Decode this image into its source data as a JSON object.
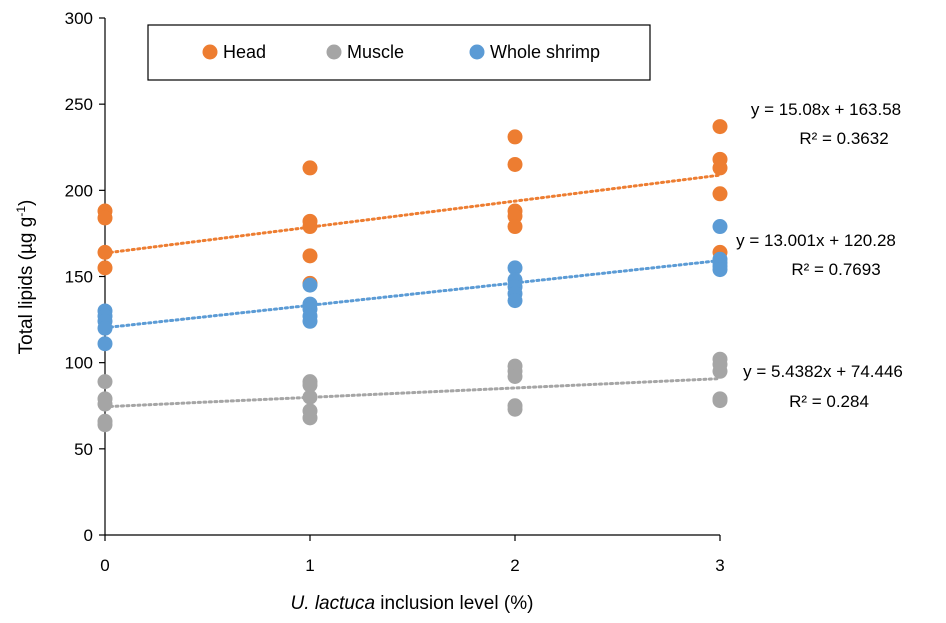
{
  "chart_data": {
    "type": "scatter",
    "xlabel_italic": "U. lactuca",
    "xlabel_rest": " inclusion level (%)",
    "ylabel_main": "Total lipids (µg g",
    "ylabel_sup": "-1",
    "ylabel_close": ")",
    "xlim": [
      0,
      3
    ],
    "ylim": [
      0,
      300
    ],
    "x_ticks": [
      "0",
      "1",
      "2",
      "3"
    ],
    "y_ticks": [
      "0",
      "50",
      "100",
      "150",
      "200",
      "250",
      "300"
    ],
    "legend_position": "top",
    "series": [
      {
        "name": "Head",
        "color": "#ED7D31",
        "points": [
          {
            "x": 0,
            "y": 188
          },
          {
            "x": 0,
            "y": 184
          },
          {
            "x": 0,
            "y": 164
          },
          {
            "x": 0,
            "y": 155
          },
          {
            "x": 1,
            "y": 213
          },
          {
            "x": 1,
            "y": 182
          },
          {
            "x": 1,
            "y": 179
          },
          {
            "x": 1,
            "y": 162
          },
          {
            "x": 1,
            "y": 146
          },
          {
            "x": 2,
            "y": 231
          },
          {
            "x": 2,
            "y": 215
          },
          {
            "x": 2,
            "y": 188
          },
          {
            "x": 2,
            "y": 185
          },
          {
            "x": 2,
            "y": 179
          },
          {
            "x": 3,
            "y": 237
          },
          {
            "x": 3,
            "y": 218
          },
          {
            "x": 3,
            "y": 213
          },
          {
            "x": 3,
            "y": 198
          },
          {
            "x": 3,
            "y": 164
          }
        ],
        "trend": {
          "slope": 15.08,
          "intercept": 163.58
        },
        "equation": "y = 15.08x + 163.58",
        "r2": "R² = 0.3632"
      },
      {
        "name": "Muscle",
        "color": "#A5A5A5",
        "points": [
          {
            "x": 0,
            "y": 89
          },
          {
            "x": 0,
            "y": 79
          },
          {
            "x": 0,
            "y": 76
          },
          {
            "x": 0,
            "y": 66
          },
          {
            "x": 0,
            "y": 64
          },
          {
            "x": 1,
            "y": 89
          },
          {
            "x": 1,
            "y": 87
          },
          {
            "x": 1,
            "y": 80
          },
          {
            "x": 1,
            "y": 72
          },
          {
            "x": 1,
            "y": 68
          },
          {
            "x": 2,
            "y": 98
          },
          {
            "x": 2,
            "y": 95
          },
          {
            "x": 2,
            "y": 92
          },
          {
            "x": 2,
            "y": 75
          },
          {
            "x": 2,
            "y": 73
          },
          {
            "x": 3,
            "y": 102
          },
          {
            "x": 3,
            "y": 99
          },
          {
            "x": 3,
            "y": 95
          },
          {
            "x": 3,
            "y": 79
          },
          {
            "x": 3,
            "y": 78
          }
        ],
        "trend": {
          "slope": 5.4382,
          "intercept": 74.446
        },
        "equation": "y = 5.4382x + 74.446",
        "r2": "R² = 0.284"
      },
      {
        "name": "Whole shrimp",
        "color": "#5B9BD5",
        "points": [
          {
            "x": 0,
            "y": 130
          },
          {
            "x": 0,
            "y": 127
          },
          {
            "x": 0,
            "y": 124
          },
          {
            "x": 0,
            "y": 120
          },
          {
            "x": 0,
            "y": 111
          },
          {
            "x": 1,
            "y": 145
          },
          {
            "x": 1,
            "y": 134
          },
          {
            "x": 1,
            "y": 131
          },
          {
            "x": 1,
            "y": 127
          },
          {
            "x": 1,
            "y": 124
          },
          {
            "x": 2,
            "y": 155
          },
          {
            "x": 2,
            "y": 148
          },
          {
            "x": 2,
            "y": 144
          },
          {
            "x": 2,
            "y": 140
          },
          {
            "x": 2,
            "y": 136
          },
          {
            "x": 3,
            "y": 179
          },
          {
            "x": 3,
            "y": 160
          },
          {
            "x": 3,
            "y": 158
          },
          {
            "x": 3,
            "y": 156
          },
          {
            "x": 3,
            "y": 154
          }
        ],
        "trend": {
          "slope": 13.001,
          "intercept": 120.28
        },
        "equation": "y = 13.001x + 120.28",
        "r2": "R² = 0.7693"
      }
    ]
  }
}
